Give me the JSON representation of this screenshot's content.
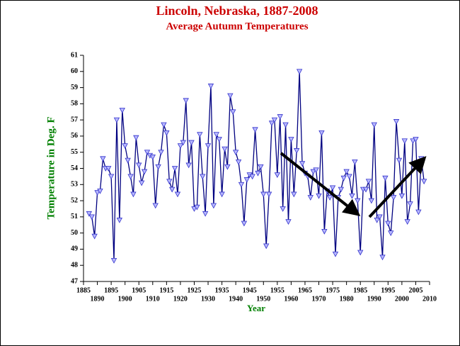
{
  "chart_data": {
    "type": "line",
    "title": "Lincoln, Nebraska, 1887-2008",
    "subtitle": "Average Autumn Temperatures",
    "x_label": "Year",
    "y_label": "Temperature in Deg. F",
    "color": "#000080",
    "marker_color": "#3333cc",
    "x": [
      1887,
      1888,
      1889,
      1890,
      1891,
      1892,
      1893,
      1894,
      1895,
      1896,
      1897,
      1898,
      1899,
      1900,
      1901,
      1902,
      1903,
      1904,
      1905,
      1906,
      1907,
      1908,
      1909,
      1910,
      1911,
      1912,
      1913,
      1914,
      1915,
      1916,
      1917,
      1918,
      1919,
      1920,
      1921,
      1922,
      1923,
      1924,
      1925,
      1926,
      1927,
      1928,
      1929,
      1930,
      1931,
      1932,
      1933,
      1934,
      1935,
      1936,
      1937,
      1938,
      1939,
      1940,
      1941,
      1942,
      1943,
      1944,
      1945,
      1946,
      1947,
      1948,
      1949,
      1950,
      1951,
      1952,
      1953,
      1954,
      1955,
      1956,
      1957,
      1958,
      1959,
      1960,
      1961,
      1962,
      1963,
      1964,
      1965,
      1966,
      1967,
      1968,
      1969,
      1970,
      1971,
      1972,
      1973,
      1974,
      1975,
      1976,
      1977,
      1978,
      1979,
      1980,
      1981,
      1982,
      1983,
      1984,
      1985,
      1986,
      1987,
      1988,
      1989,
      1990,
      1991,
      1992,
      1993,
      1994,
      1995,
      1996,
      1997,
      1998,
      1999,
      2000,
      2001,
      2002,
      2003,
      2004,
      2005,
      2006,
      2007,
      2008
    ],
    "values": [
      51.2,
      51.0,
      49.8,
      52.5,
      52.6,
      54.6,
      54.0,
      54.0,
      53.5,
      48.3,
      57.0,
      50.8,
      57.6,
      55.4,
      54.5,
      53.5,
      52.4,
      55.9,
      54.2,
      53.1,
      53.8,
      55.0,
      54.8,
      54.7,
      51.7,
      54.1,
      55.0,
      56.7,
      56.2,
      53.2,
      52.7,
      54.0,
      52.4,
      55.4,
      55.6,
      58.2,
      54.2,
      55.6,
      51.5,
      51.6,
      56.1,
      53.5,
      51.2,
      55.4,
      59.1,
      51.7,
      56.1,
      55.8,
      52.4,
      55.2,
      54.1,
      58.5,
      57.5,
      55.0,
      54.4,
      53.0,
      50.6,
      53.3,
      53.6,
      53.5,
      56.4,
      53.7,
      54.1,
      52.4,
      49.2,
      52.4,
      56.8,
      57.0,
      53.6,
      57.2,
      51.5,
      56.7,
      50.7,
      55.8,
      52.4,
      55.1,
      60.0,
      54.3,
      53.7,
      53.5,
      52.2,
      53.8,
      53.9,
      52.3,
      56.2,
      50.1,
      52.6,
      52.2,
      52.8,
      48.7,
      52.2,
      52.7,
      53.4,
      53.8,
      53.5,
      52.3,
      54.4,
      52.0,
      48.8,
      52.7,
      52.7,
      53.2,
      52.0,
      56.7,
      50.8,
      51.0,
      48.5,
      53.4,
      50.6,
      50.0,
      52.2,
      56.9,
      54.5,
      52.3,
      55.7,
      50.7,
      51.8,
      55.7,
      55.8,
      51.3,
      54.6,
      53.2
    ],
    "xlim": [
      1885,
      2010
    ],
    "xticks": [
      1885,
      1890,
      1895,
      1900,
      1905,
      1910,
      1915,
      1920,
      1925,
      1930,
      1935,
      1940,
      1945,
      1950,
      1955,
      1960,
      1965,
      1970,
      1975,
      1980,
      1985,
      1990,
      1995,
      2000,
      2005,
      2010
    ],
    "ylim": [
      47,
      61
    ],
    "yticks": [
      47,
      48,
      49,
      50,
      51,
      52,
      53,
      54,
      55,
      56,
      57,
      58,
      59,
      60,
      61
    ]
  }
}
